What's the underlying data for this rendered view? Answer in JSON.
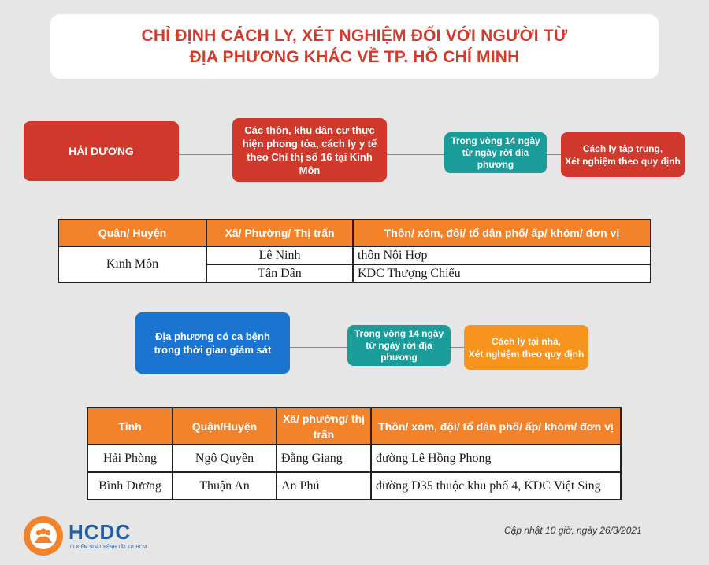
{
  "title": {
    "line1": "CHỈ ĐỊNH CÁCH LY, XÉT NGHIỆM ĐỐI VỚI NGƯỜI TỪ",
    "line2": "ĐỊA PHƯƠNG KHÁC VỀ TP. HỒ CHÍ MINH"
  },
  "flow1": {
    "origin": "HẢI DƯƠNG",
    "condition": "Các thôn, khu dân cư thực hiện phong tỏa, cách ly y tế theo Chỉ thị số 16 tại Kinh Môn",
    "period": "Trong vòng 14 ngày từ ngày rời địa phương",
    "action_line1": "Cách ly tập trung,",
    "action_line2": "Xét nghiệm theo quy định"
  },
  "table1": {
    "headers": [
      "Quận/ Huyện",
      "Xã/ Phường/ Thị trấn",
      "Thôn/ xóm, đội/ tổ dân phố/ ấp/ khóm/ đơn vị"
    ],
    "district": "Kinh Môn",
    "rows": [
      {
        "ward": "Lê Ninh",
        "area": "thôn Nội Hợp"
      },
      {
        "ward": "Tân Dân",
        "area": "KDC Thượng Chiểu"
      }
    ]
  },
  "flow2": {
    "origin": "Địa phương có ca bệnh trong thời gian giám sát",
    "period": "Trong vòng 14 ngày từ ngày rời địa phương",
    "action_line1": "Cách ly tại nhà,",
    "action_line2": "Xét nghiệm theo quy định"
  },
  "table2": {
    "headers": [
      "Tỉnh",
      "Quận/Huyện",
      "Xã/ phường/ thị trấn",
      "Thôn/ xóm, đội/ tổ dân phố/ ấp/ khóm/ đơn vị"
    ],
    "rows": [
      {
        "province": "Hải Phòng",
        "district": "Ngô Quyền",
        "ward": "Đằng Giang",
        "area": "đường Lê Hồng Phong"
      },
      {
        "province": "Bình Dương",
        "district": "Thuận An",
        "ward": "An Phú",
        "area": "đường D35 thuộc khu phố 4, KDC Việt Sing"
      }
    ]
  },
  "footer": {
    "logo_text": "HCDC",
    "logo_subtext": "TT KIỂM SOÁT BỆNH TẬT TP. HCM",
    "update": "Cập nhật 10 giờ, ngày 26/3/2021"
  },
  "colors": {
    "title_red": "#d33a2c",
    "box_red": "#d0392b",
    "teal": "#1a9c9b",
    "blue": "#1a74d0",
    "orange": "#f7941d",
    "header_orange": "#f2832b"
  }
}
